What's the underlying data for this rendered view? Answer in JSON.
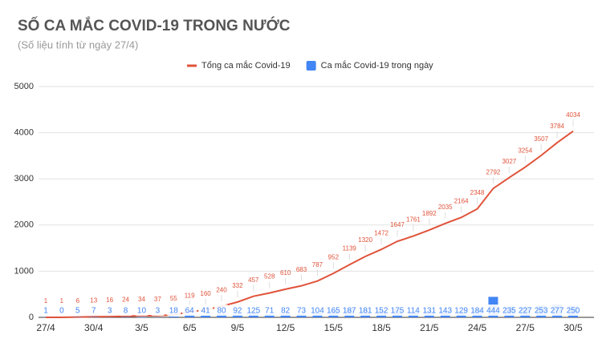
{
  "chart_data": {
    "type": "combo",
    "title": "SỐ CA MẮC COVID-19 TRONG NƯỚC",
    "subtitle": "(Số liệu tính từ ngày 27/4)",
    "categories": [
      "27/4",
      null,
      null,
      "30/4",
      null,
      null,
      "3/5",
      null,
      null,
      "6/5",
      null,
      null,
      "9/5",
      null,
      null,
      "12/5",
      null,
      null,
      "15/5",
      null,
      null,
      "18/5",
      null,
      null,
      "21/5",
      null,
      null,
      "24/5",
      null,
      null,
      "27/5",
      null,
      null,
      "30/5"
    ],
    "series": [
      {
        "name": "Tổng ca mắc Covid-19",
        "type": "line",
        "color": "#e0533a",
        "values": [
          1,
          1,
          6,
          13,
          16,
          24,
          34,
          37,
          55,
          119,
          160,
          240,
          332,
          457,
          528,
          610,
          683,
          787,
          952,
          1139,
          1320,
          1472,
          1647,
          1761,
          1892,
          2035,
          2164,
          2348,
          2792,
          3027,
          3254,
          3507,
          3784,
          4034
        ]
      },
      {
        "name": "Ca mắc Covid-19 trong ngày",
        "type": "bar",
        "color": "#4285f4",
        "values": [
          1,
          0,
          5,
          7,
          3,
          8,
          10,
          3,
          18,
          64,
          41,
          80,
          92,
          125,
          71,
          82,
          73,
          104,
          165,
          187,
          181,
          152,
          175,
          114,
          131,
          143,
          129,
          184,
          444,
          235,
          227,
          253,
          277,
          250
        ]
      }
    ],
    "ylim": [
      0,
      5000
    ],
    "yticks": [
      0,
      1000,
      2000,
      3000,
      4000,
      5000
    ],
    "grid": true,
    "legend": "top"
  }
}
